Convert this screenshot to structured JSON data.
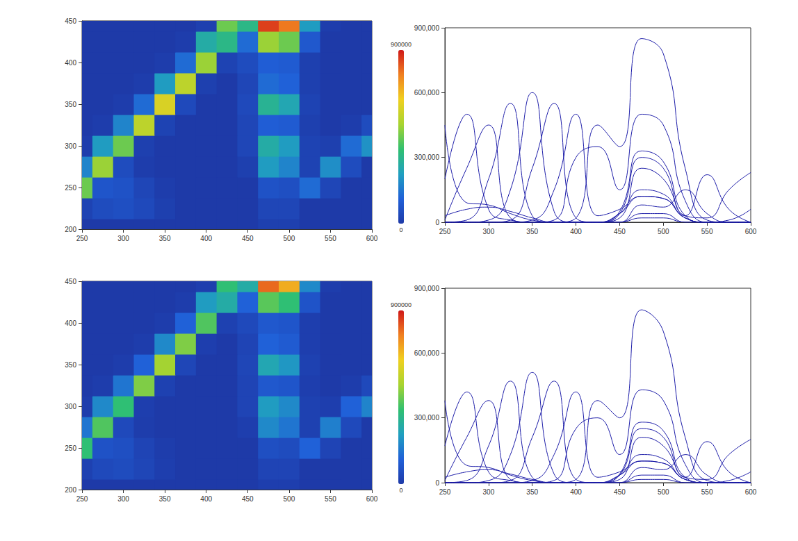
{
  "chart_data": [
    {
      "type": "heatmap",
      "x": [
        250,
        275,
        300,
        325,
        350,
        375,
        400,
        425,
        450,
        475,
        500,
        525,
        550,
        575,
        600
      ],
      "y": [
        200,
        225,
        250,
        275,
        300,
        325,
        350,
        375,
        400,
        425,
        450
      ],
      "z": [
        [
          0,
          0,
          0,
          0,
          0,
          0,
          0,
          0,
          0,
          20000,
          20000,
          0,
          0,
          0,
          0
        ],
        [
          30000,
          60000,
          70000,
          50000,
          20000,
          0,
          0,
          0,
          0,
          40000,
          40000,
          0,
          0,
          0,
          0
        ],
        [
          450000,
          90000,
          80000,
          40000,
          10000,
          0,
          0,
          0,
          0,
          80000,
          70000,
          150000,
          40000,
          0,
          0
        ],
        [
          200000,
          500000,
          60000,
          10000,
          0,
          0,
          0,
          0,
          20000,
          250000,
          200000,
          30000,
          220000,
          60000,
          0
        ],
        [
          10000,
          250000,
          450000,
          20000,
          0,
          0,
          0,
          0,
          40000,
          300000,
          250000,
          30000,
          20000,
          150000,
          230000
        ],
        [
          0,
          10000,
          200000,
          550000,
          30000,
          0,
          0,
          0,
          40000,
          120000,
          110000,
          20000,
          0,
          10000,
          60000
        ],
        [
          0,
          0,
          10000,
          150000,
          600000,
          50000,
          0,
          0,
          50000,
          330000,
          280000,
          30000,
          0,
          0,
          0
        ],
        [
          0,
          0,
          0,
          10000,
          250000,
          550000,
          20000,
          0,
          40000,
          150000,
          130000,
          20000,
          0,
          0,
          0
        ],
        [
          0,
          0,
          0,
          0,
          10000,
          150000,
          500000,
          30000,
          60000,
          120000,
          110000,
          20000,
          0,
          0,
          0
        ],
        [
          0,
          0,
          0,
          0,
          0,
          10000,
          300000,
          350000,
          150000,
          500000,
          450000,
          100000,
          0,
          0,
          0
        ],
        [
          0,
          0,
          0,
          0,
          0,
          0,
          20000,
          450000,
          350000,
          850000,
          780000,
          250000,
          10000,
          0,
          0
        ]
      ],
      "colorbar_range": [
        0,
        900000
      ],
      "xlim": [
        250,
        600
      ],
      "xticks": [
        250,
        300,
        350,
        400,
        450,
        500,
        550,
        600
      ],
      "ylim": [
        200,
        450
      ],
      "yticks": [
        200,
        250,
        300,
        350,
        400,
        450
      ],
      "grid": false
    },
    {
      "type": "line",
      "color": "#1c1ca8",
      "x": [
        250,
        275,
        300,
        325,
        350,
        375,
        400,
        425,
        450,
        475,
        500,
        525,
        550,
        575,
        600
      ],
      "series": [
        {
          "values": [
            0,
            0,
            0,
            0,
            0,
            0,
            0,
            0,
            0,
            20000,
            20000,
            0,
            0,
            0,
            0
          ]
        },
        {
          "values": [
            30000,
            60000,
            70000,
            50000,
            20000,
            0,
            0,
            0,
            0,
            40000,
            40000,
            0,
            0,
            0,
            0
          ]
        },
        {
          "values": [
            450000,
            90000,
            80000,
            40000,
            10000,
            0,
            0,
            0,
            0,
            80000,
            70000,
            150000,
            40000,
            0,
            0
          ]
        },
        {
          "values": [
            200000,
            500000,
            60000,
            10000,
            0,
            0,
            0,
            0,
            20000,
            250000,
            200000,
            30000,
            220000,
            60000,
            0
          ]
        },
        {
          "values": [
            10000,
            250000,
            450000,
            20000,
            0,
            0,
            0,
            0,
            40000,
            300000,
            250000,
            30000,
            20000,
            150000,
            230000
          ]
        },
        {
          "values": [
            0,
            10000,
            200000,
            550000,
            30000,
            0,
            0,
            0,
            40000,
            120000,
            110000,
            20000,
            0,
            10000,
            60000
          ]
        },
        {
          "values": [
            0,
            0,
            10000,
            150000,
            600000,
            50000,
            0,
            0,
            50000,
            330000,
            280000,
            30000,
            0,
            0,
            0
          ]
        },
        {
          "values": [
            0,
            0,
            0,
            10000,
            250000,
            550000,
            20000,
            0,
            40000,
            150000,
            130000,
            20000,
            0,
            0,
            0
          ]
        },
        {
          "values": [
            0,
            0,
            0,
            0,
            10000,
            150000,
            500000,
            30000,
            60000,
            120000,
            110000,
            20000,
            0,
            0,
            0
          ]
        },
        {
          "values": [
            0,
            0,
            0,
            0,
            0,
            10000,
            300000,
            350000,
            150000,
            500000,
            450000,
            100000,
            0,
            0,
            0
          ]
        },
        {
          "values": [
            0,
            0,
            0,
            0,
            0,
            0,
            20000,
            450000,
            350000,
            850000,
            780000,
            250000,
            10000,
            0,
            0
          ]
        }
      ],
      "xlim": [
        250,
        600
      ],
      "xticks": [
        250,
        300,
        350,
        400,
        450,
        500,
        550,
        600
      ],
      "ylim": [
        0,
        900000
      ],
      "yticks": [
        0,
        300000,
        600000,
        900000
      ],
      "grid": false
    },
    {
      "type": "heatmap",
      "x": [
        250,
        275,
        300,
        325,
        350,
        375,
        400,
        425,
        450,
        475,
        500,
        525,
        550,
        575,
        600
      ],
      "y": [
        200,
        225,
        250,
        275,
        300,
        325,
        350,
        375,
        400,
        425,
        450
      ],
      "z": [
        [
          0,
          0,
          0,
          0,
          0,
          0,
          0,
          0,
          0,
          15000,
          15000,
          0,
          0,
          0,
          0
        ],
        [
          25000,
          50000,
          60000,
          40000,
          15000,
          0,
          0,
          0,
          0,
          35000,
          35000,
          0,
          0,
          0,
          0
        ],
        [
          380000,
          80000,
          70000,
          35000,
          10000,
          0,
          0,
          0,
          0,
          70000,
          60000,
          130000,
          35000,
          0,
          0
        ],
        [
          170000,
          420000,
          50000,
          10000,
          0,
          0,
          0,
          0,
          15000,
          210000,
          170000,
          25000,
          190000,
          50000,
          0
        ],
        [
          10000,
          210000,
          380000,
          15000,
          0,
          0,
          0,
          0,
          35000,
          250000,
          210000,
          25000,
          15000,
          130000,
          200000
        ],
        [
          0,
          10000,
          170000,
          470000,
          25000,
          0,
          0,
          0,
          35000,
          100000,
          90000,
          15000,
          0,
          10000,
          50000
        ],
        [
          0,
          0,
          10000,
          130000,
          510000,
          40000,
          0,
          0,
          40000,
          280000,
          240000,
          25000,
          0,
          0,
          0
        ],
        [
          0,
          0,
          0,
          10000,
          210000,
          470000,
          15000,
          0,
          35000,
          130000,
          110000,
          15000,
          0,
          0,
          0
        ],
        [
          0,
          0,
          0,
          0,
          10000,
          130000,
          420000,
          25000,
          50000,
          100000,
          90000,
          15000,
          0,
          0,
          0
        ],
        [
          0,
          0,
          0,
          0,
          0,
          10000,
          250000,
          300000,
          130000,
          430000,
          380000,
          85000,
          0,
          0,
          0
        ],
        [
          0,
          0,
          0,
          0,
          0,
          0,
          15000,
          380000,
          300000,
          800000,
          700000,
          210000,
          10000,
          0,
          0
        ]
      ],
      "colorbar_range": [
        0,
        900000
      ],
      "xlim": [
        250,
        600
      ],
      "xticks": [
        250,
        300,
        350,
        400,
        450,
        500,
        550,
        600
      ],
      "ylim": [
        200,
        450
      ],
      "yticks": [
        200,
        250,
        300,
        350,
        400,
        450
      ],
      "grid": false
    },
    {
      "type": "line",
      "color": "#1c1ca8",
      "x": [
        250,
        275,
        300,
        325,
        350,
        375,
        400,
        425,
        450,
        475,
        500,
        525,
        550,
        575,
        600
      ],
      "series": [
        {
          "values": [
            0,
            0,
            0,
            0,
            0,
            0,
            0,
            0,
            0,
            15000,
            15000,
            0,
            0,
            0,
            0
          ]
        },
        {
          "values": [
            25000,
            50000,
            60000,
            40000,
            15000,
            0,
            0,
            0,
            0,
            35000,
            35000,
            0,
            0,
            0,
            0
          ]
        },
        {
          "values": [
            380000,
            80000,
            70000,
            35000,
            10000,
            0,
            0,
            0,
            0,
            70000,
            60000,
            130000,
            35000,
            0,
            0
          ]
        },
        {
          "values": [
            170000,
            420000,
            50000,
            10000,
            0,
            0,
            0,
            0,
            15000,
            210000,
            170000,
            25000,
            190000,
            50000,
            0
          ]
        },
        {
          "values": [
            10000,
            210000,
            380000,
            15000,
            0,
            0,
            0,
            0,
            35000,
            250000,
            210000,
            25000,
            15000,
            130000,
            200000
          ]
        },
        {
          "values": [
            0,
            10000,
            170000,
            470000,
            25000,
            0,
            0,
            0,
            35000,
            100000,
            90000,
            15000,
            0,
            10000,
            50000
          ]
        },
        {
          "values": [
            0,
            0,
            10000,
            130000,
            510000,
            40000,
            0,
            0,
            40000,
            280000,
            240000,
            25000,
            0,
            0,
            0
          ]
        },
        {
          "values": [
            0,
            0,
            0,
            10000,
            210000,
            470000,
            15000,
            0,
            35000,
            130000,
            110000,
            15000,
            0,
            0,
            0
          ]
        },
        {
          "values": [
            0,
            0,
            0,
            0,
            10000,
            130000,
            420000,
            25000,
            50000,
            100000,
            90000,
            15000,
            0,
            0,
            0
          ]
        },
        {
          "values": [
            0,
            0,
            0,
            0,
            0,
            10000,
            250000,
            300000,
            130000,
            430000,
            380000,
            85000,
            0,
            0,
            0
          ]
        },
        {
          "values": [
            0,
            0,
            0,
            0,
            0,
            0,
            15000,
            380000,
            300000,
            800000,
            700000,
            210000,
            10000,
            0,
            0
          ]
        }
      ],
      "xlim": [
        250,
        600
      ],
      "xticks": [
        250,
        300,
        350,
        400,
        450,
        500,
        550,
        600
      ],
      "ylim": [
        0,
        900000
      ],
      "yticks": [
        0,
        300000,
        600000,
        900000
      ],
      "grid": false
    }
  ]
}
